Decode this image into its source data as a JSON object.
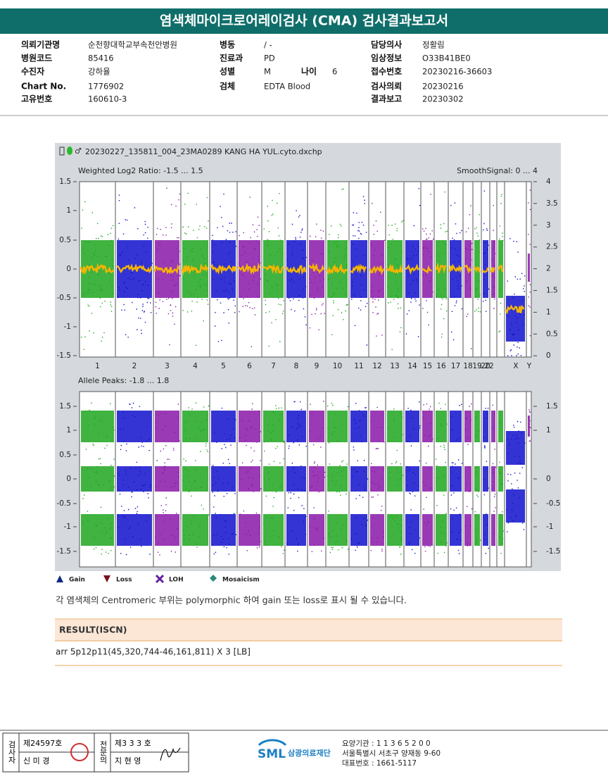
{
  "header": {
    "title": "염색체마이크로어레이검사 (CMA) 검사결과보고서"
  },
  "info": {
    "rows": [
      [
        {
          "label": "의뢰기관명",
          "value": "순천향대학교부속천안병원"
        },
        {
          "label": "병동",
          "value": "/ -"
        },
        {
          "label": "담당의사",
          "value": "정활림"
        }
      ],
      [
        {
          "label": "병원코드",
          "value": "85416"
        },
        {
          "label": "진료과",
          "value": "PD"
        },
        {
          "label": "임상정보",
          "value": "O33B41BE0"
        }
      ],
      [
        {
          "label": "수진자",
          "value": "강하율"
        },
        {
          "label": "성별",
          "value": "M"
        },
        {
          "label": "나이",
          "value": "6"
        },
        {
          "label": "접수번호",
          "value": "20230216-36603"
        }
      ],
      [
        {
          "label": "Chart No.",
          "value": "1776902"
        },
        {
          "label": "검체",
          "value": "EDTA Blood"
        },
        {
          "label": "검사의뢰",
          "value": "20230216"
        }
      ],
      [
        {
          "label": "고유번호",
          "value": "160610-3"
        },
        {
          "label": "결과보고",
          "value": "20230302"
        }
      ]
    ]
  },
  "plot": {
    "file": "20230227_135811_004_23MA0289 KANG HA YUL.cyto.dxchp",
    "top": {
      "label_left": "Weighted Log2 Ratio: -1.5 ... 1.5",
      "label_right": "SmoothSignal: 0 ... 4",
      "ticks_left": [
        "1.5",
        "1",
        "0.5",
        "0",
        "-0.5",
        "-1",
        "-1.5"
      ],
      "ticks_right": [
        "4",
        "3.5",
        "3",
        "2.5",
        "2",
        "1.5",
        "1",
        "0.5",
        "0"
      ]
    },
    "chromosomes": [
      "1",
      "2",
      "3",
      "4",
      "5",
      "6",
      "7",
      "8",
      "9",
      "10",
      "11",
      "12",
      "13",
      "14",
      "15",
      "16",
      "17",
      "18",
      "19",
      "20",
      "...22",
      "X",
      "Y"
    ],
    "bottom": {
      "label_left": "Allele Peaks: -1.8 ... 1.8",
      "ticks_left": [
        "1.5",
        "1",
        "0.5",
        "0",
        "-0.5",
        "-1",
        "-1.5"
      ],
      "ticks_right": [
        "1.5",
        "1",
        "0",
        "-0.5",
        "-1",
        "-1.5"
      ]
    },
    "legend": [
      "Gain",
      "Loss",
      "LOH",
      "Mosaicism"
    ]
  },
  "note": "각 염색체의 Centromeric 부위는 polymorphic 하여 gain 또는 loss로 표시 될 수 있습니다.",
  "result": {
    "heading": "RESULT(ISCN)",
    "text": "arr 5p12p11(45,320,744-46,161,811) X 3 [LB]"
  },
  "footer": {
    "tester_role": "검사자",
    "tester_no": "제24597호",
    "tester_name": "신 미 경",
    "doctor_role": "전문의",
    "doctor_no": "제3 3 3 호",
    "doctor_name": "지 현 영",
    "logo": "SML",
    "org": "삼광의료재단",
    "lines": [
      "요양기관 : 1 1 3 6 5 2 0 0",
      "서울특별시 서초구 양재동 9-60",
      "대표번호 : 1661-5117"
    ]
  }
}
